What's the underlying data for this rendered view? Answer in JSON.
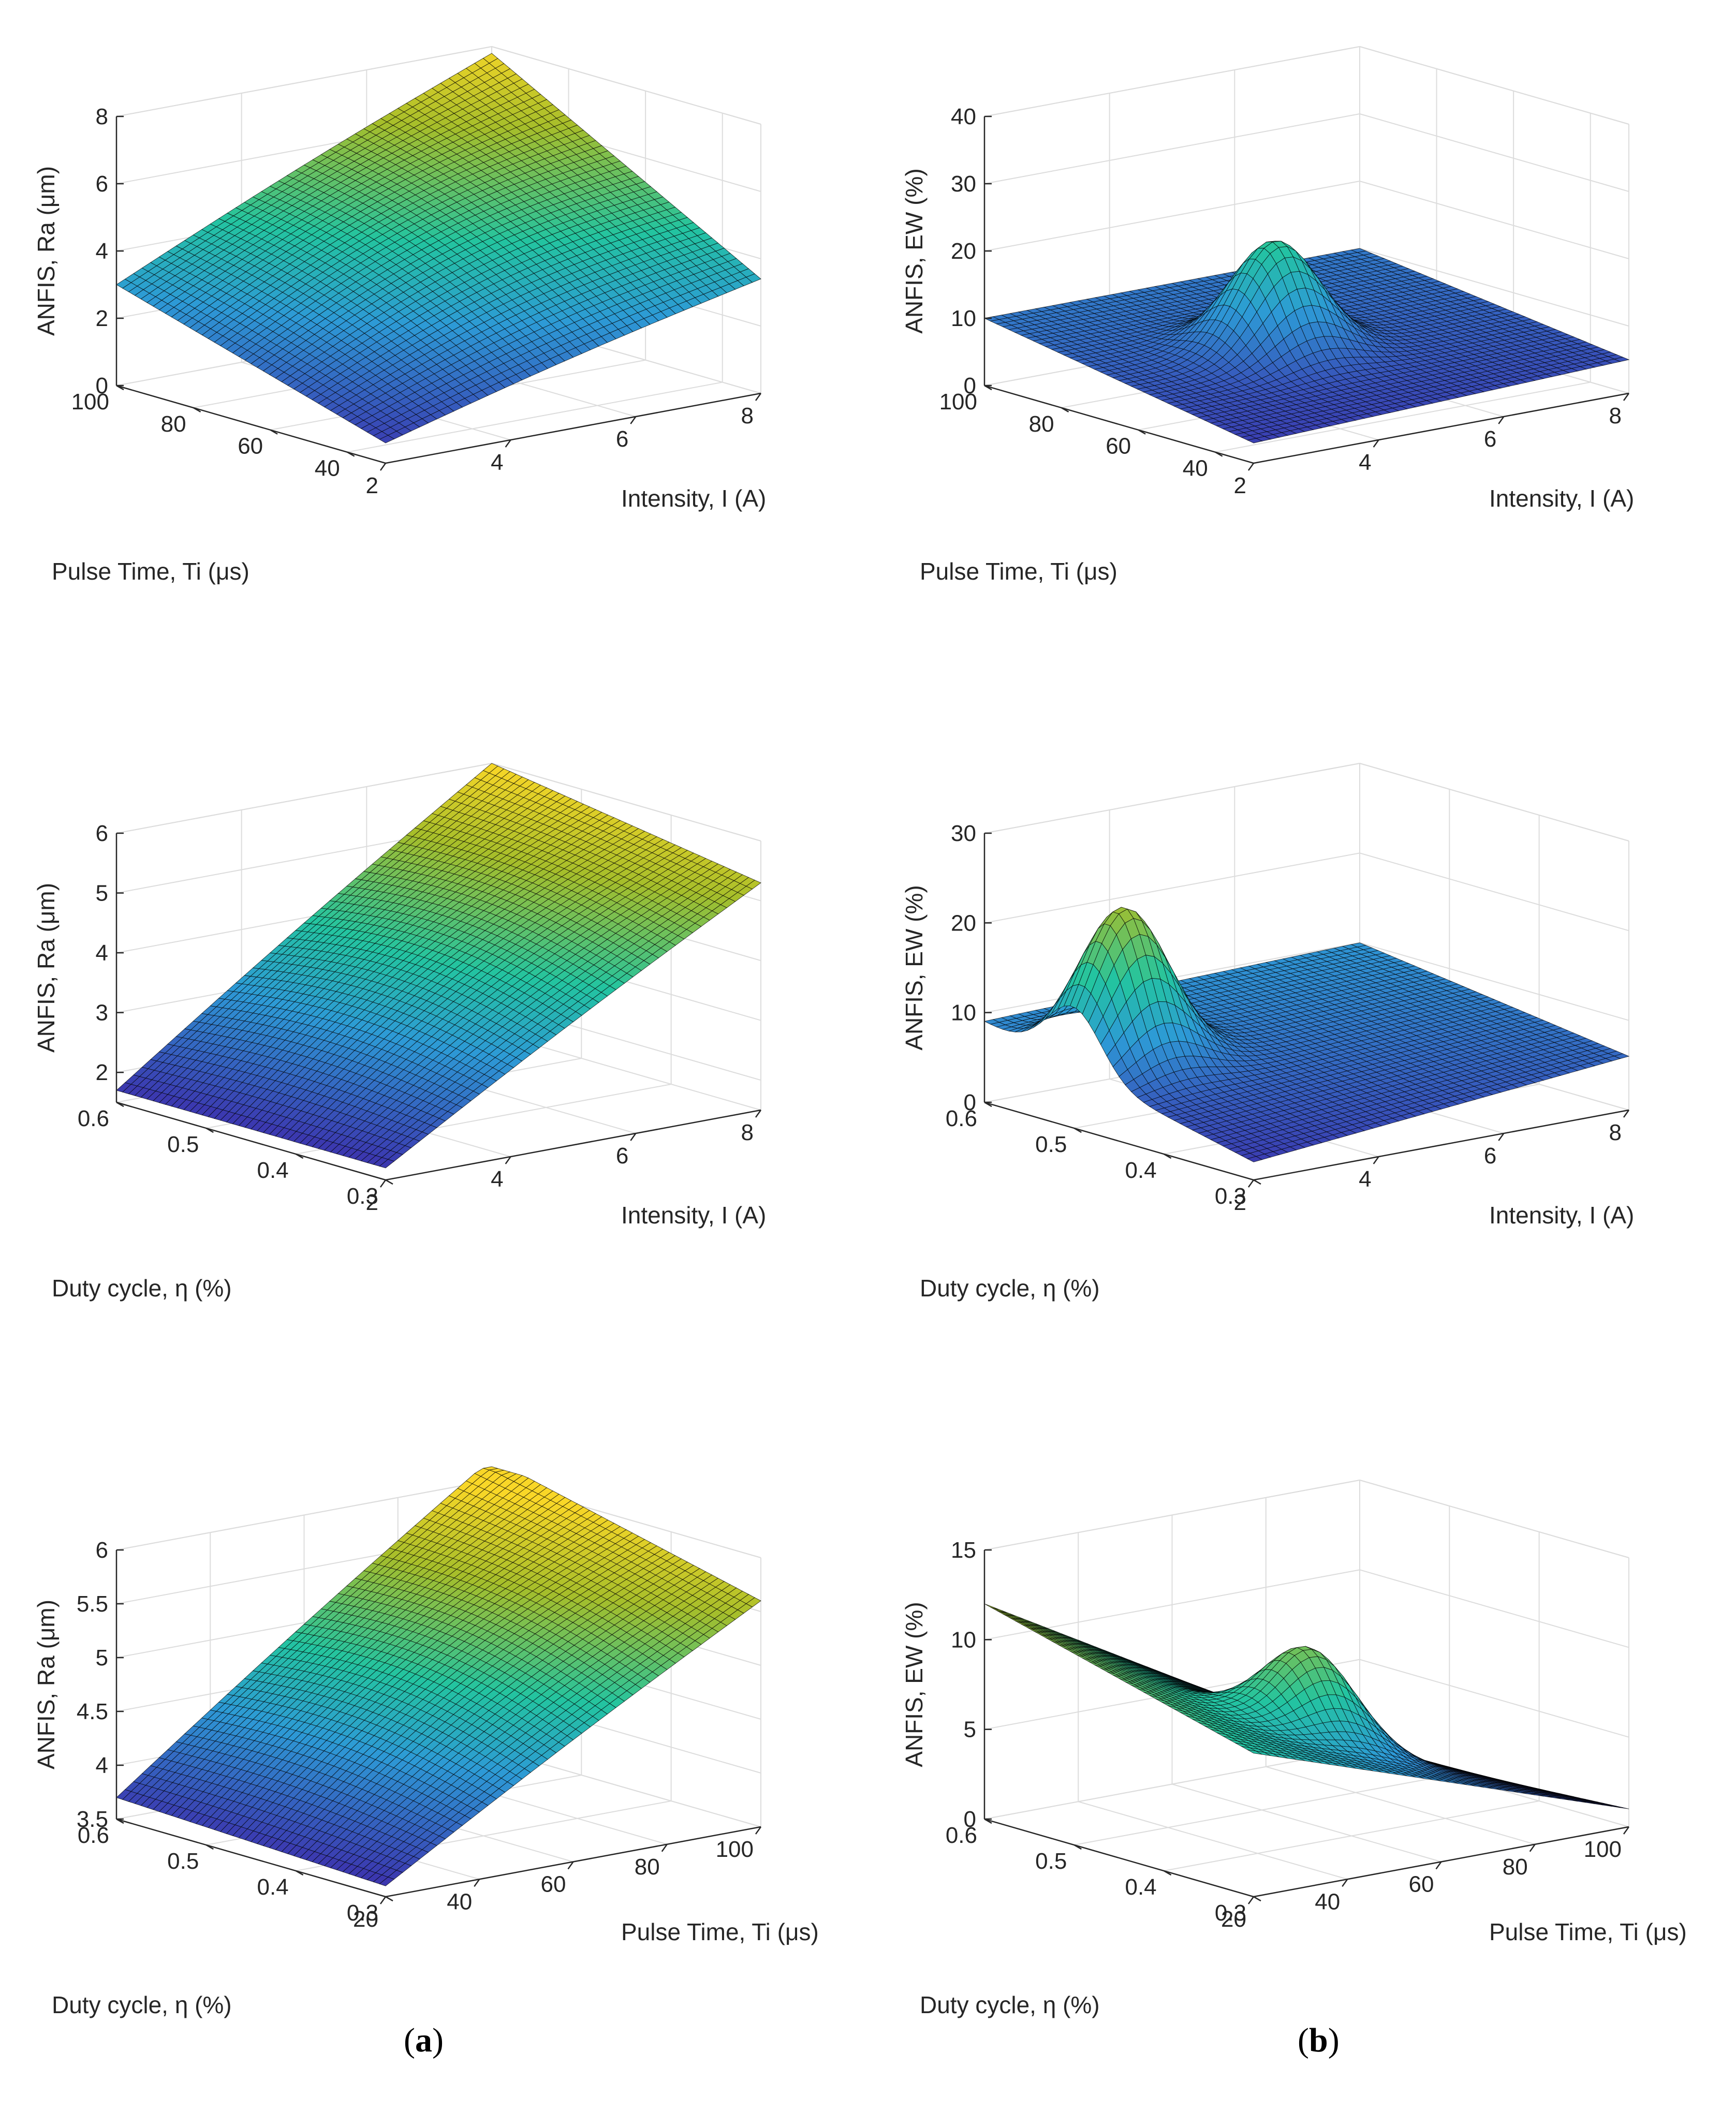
{
  "figure": {
    "label_a_open": "(",
    "label_a": "a",
    "label_a_close": ")",
    "label_b_open": "(",
    "label_b": "b",
    "label_b_close": ")",
    "colors": {
      "low": "#3e26a8",
      "mid1": "#2d9ad6",
      "mid2": "#23c4a0",
      "high1": "#a6be2a",
      "high2": "#f9d727",
      "edge": "#000000",
      "grid": "#dcdcdc",
      "axis": "#262626"
    }
  },
  "chart_data": [
    {
      "id": "ra-intensity-pulse",
      "type": "surface",
      "column": "a",
      "x": {
        "label": "Intensity, I (A)",
        "range": [
          2,
          8
        ],
        "ticks": [
          2,
          4,
          6,
          8
        ]
      },
      "y": {
        "label": "Pulse Time, Ti (μs)",
        "range": [
          30,
          100
        ],
        "ticks": [
          40,
          60,
          80,
          100
        ]
      },
      "z": {
        "label": "ANFIS, Ra (μm)",
        "range": [
          0,
          8
        ],
        "ticks": [
          0,
          2,
          4,
          6,
          8
        ]
      },
      "corners": {
        "x2_yhigh": 3.0,
        "x8_yhigh": 7.8,
        "x8_ylow": 3.4,
        "x2_ylow": 0.6
      },
      "peak_z": 7.9
    },
    {
      "id": "ew-intensity-pulse",
      "type": "surface",
      "column": "b",
      "x": {
        "label": "Intensity, I (A)",
        "range": [
          2,
          8
        ],
        "ticks": [
          2,
          4,
          6,
          8
        ]
      },
      "y": {
        "label": "Pulse Time, Ti (μs)",
        "range": [
          30,
          100
        ],
        "ticks": [
          40,
          60,
          80,
          100
        ]
      },
      "z": {
        "label": "ANFIS, EW (%)",
        "range": [
          0,
          40
        ],
        "ticks": [
          0,
          10,
          20,
          30,
          40
        ]
      },
      "corners": {
        "x2_yhigh": 10,
        "x8_yhigh": 10,
        "x8_ylow": 5,
        "x2_ylow": 3
      },
      "peak": {
        "x": 4.5,
        "y": 65,
        "z": 22
      }
    },
    {
      "id": "ra-intensity-duty",
      "type": "surface",
      "column": "a",
      "x": {
        "label": "Intensity, I (A)",
        "range": [
          2,
          8
        ],
        "ticks": [
          2,
          4,
          6,
          8
        ]
      },
      "y": {
        "label": "Duty cycle, η (%)",
        "range": [
          0.3,
          0.6
        ],
        "ticks": [
          0.3,
          0.4,
          0.5,
          0.6
        ]
      },
      "z": {
        "label": "ANFIS, Ra (μm)",
        "range": [
          1.5,
          6
        ],
        "ticks": [
          2,
          3,
          4,
          5,
          6
        ]
      },
      "corners": {
        "x2_yhigh": 1.7,
        "x8_yhigh": 6.0,
        "x8_ylow": 5.3,
        "x2_ylow": 1.7
      },
      "peak_z": 6.0
    },
    {
      "id": "ew-intensity-duty",
      "type": "surface",
      "column": "b",
      "x": {
        "label": "Intensity, I (A)",
        "range": [
          2,
          8
        ],
        "ticks": [
          2,
          4,
          6,
          8
        ]
      },
      "y": {
        "label": "Duty cycle, η (%)",
        "range": [
          0.3,
          0.6
        ],
        "ticks": [
          0.3,
          0.4,
          0.5,
          0.6
        ]
      },
      "z": {
        "label": "ANFIS, EW (%)",
        "range": [
          0,
          30
        ],
        "ticks": [
          0,
          10,
          20,
          30
        ]
      },
      "corners": {
        "x2_yhigh": 9,
        "x8_yhigh": 10,
        "x8_ylow": 6,
        "x2_ylow": 2
      },
      "peak": {
        "x": 2.8,
        "y": 0.5,
        "z": 22
      }
    },
    {
      "id": "ra-pulse-duty",
      "type": "surface",
      "column": "a",
      "x": {
        "label": "Pulse Time, Ti (μs)",
        "range": [
          20,
          100
        ],
        "ticks": [
          20,
          40,
          60,
          80,
          100
        ]
      },
      "y": {
        "label": "Duty cycle, η (%)",
        "range": [
          0.3,
          0.6
        ],
        "ticks": [
          0.3,
          0.4,
          0.5,
          0.6
        ]
      },
      "z": {
        "label": "ANFIS, Ra (μm)",
        "range": [
          3.5,
          6
        ],
        "ticks": [
          3.5,
          4,
          4.5,
          5,
          5.5,
          6
        ]
      },
      "corners": {
        "x2_yhigh": 3.7,
        "x8_yhigh": 6.2,
        "x8_ylow": 5.6,
        "x2_ylow": 3.6
      },
      "peak_z": 6.2
    },
    {
      "id": "ew-pulse-duty",
      "type": "surface",
      "column": "b",
      "x": {
        "label": "Pulse Time, Ti (μs)",
        "range": [
          20,
          100
        ],
        "ticks": [
          20,
          40,
          60,
          80,
          100
        ]
      },
      "y": {
        "label": "Duty cycle, η (%)",
        "range": [
          0.3,
          0.6
        ],
        "ticks": [
          0.3,
          0.4,
          0.5,
          0.6
        ]
      },
      "z": {
        "label": "ANFIS, EW (%)",
        "range": [
          0,
          15
        ],
        "ticks": [
          0,
          5,
          10,
          15
        ]
      },
      "corners": {
        "x2_yhigh": 12,
        "x8_yhigh": 0,
        "x8_ylow": 1,
        "x2_ylow": 8
      },
      "peak": {
        "x": 55,
        "y": 0.42,
        "z": 12
      }
    }
  ]
}
